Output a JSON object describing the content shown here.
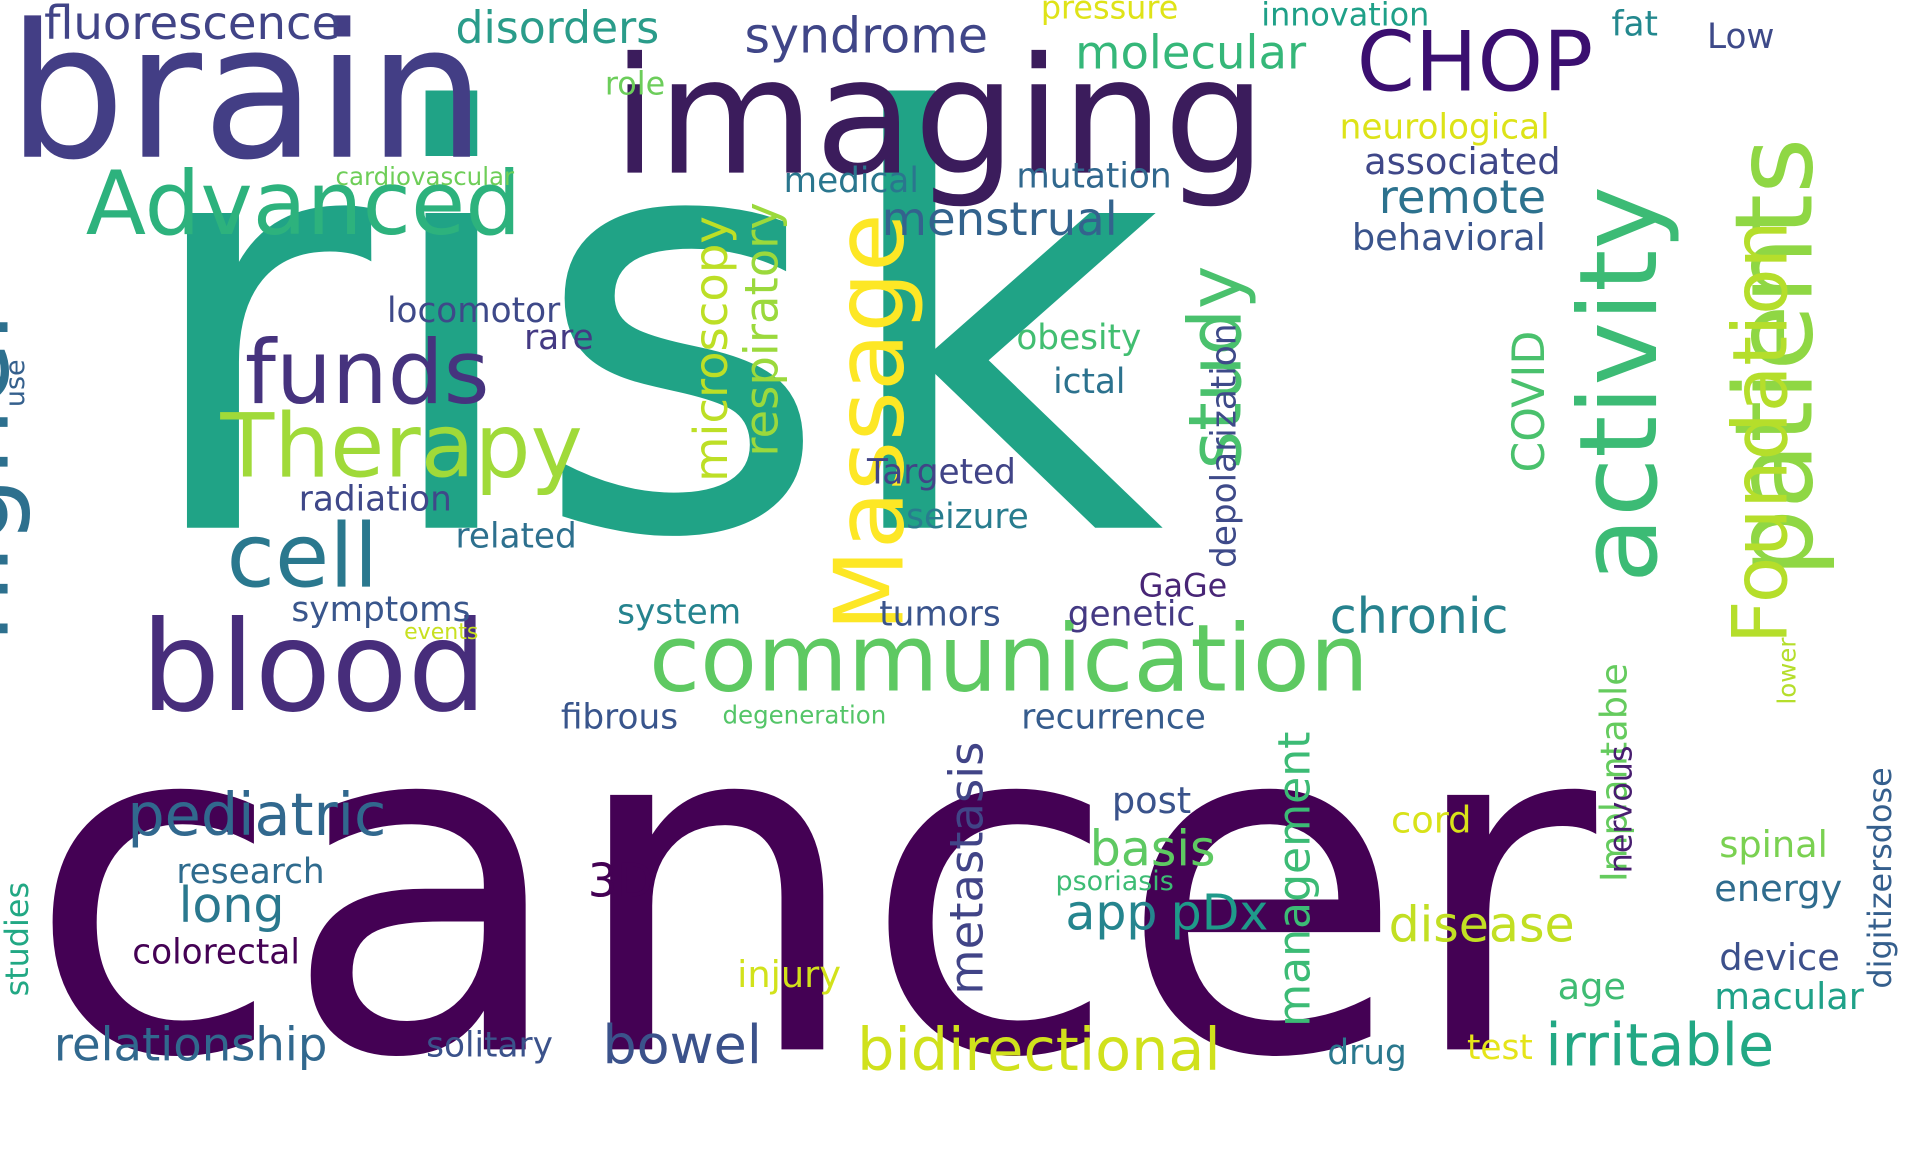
{
  "words": {
    "risk": {
      "text": "risk",
      "color": "#20a386"
    },
    "cancer": {
      "text": "cancer",
      "color": "#440154"
    },
    "brain": {
      "text": "brain",
      "color": "#433e85"
    },
    "imaging": {
      "text": "imaging",
      "color": "#3b1c5c"
    },
    "higher": {
      "text": "higher",
      "color": "#2d708e"
    },
    "patients": {
      "text": "patients",
      "color": "#8fd744"
    },
    "activity": {
      "text": "activity",
      "color": "#3cbb75"
    },
    "massage": {
      "text": "Massage",
      "color": "#fde725"
    },
    "blood": {
      "text": "blood",
      "color": "#472d7b"
    },
    "communication": {
      "text": "communication",
      "color": "#5ec962"
    },
    "foundation": {
      "text": "Foundation",
      "color": "#b5de2b"
    },
    "therapy": {
      "text": "Therapy",
      "color": "#a0da39"
    },
    "advanced": {
      "text": "Advanced",
      "color": "#2db27d"
    },
    "funds": {
      "text": "funds",
      "color": "#46337e"
    },
    "cell": {
      "text": "cell",
      "color": "#2a788e"
    },
    "study": {
      "text": "study",
      "color": "#4ac16d"
    },
    "chop": {
      "text": "CHOP",
      "color": "#3b0f70"
    },
    "bidirectional": {
      "text": "bidirectional",
      "color": "#d0e11c"
    },
    "irritable": {
      "text": "irritable",
      "color": "#22a884"
    },
    "fluorescence": {
      "text": "fluorescence",
      "color": "#414487"
    },
    "disorders": {
      "text": "disorders",
      "color": "#2a9c8a"
    },
    "syndrome": {
      "text": "syndrome",
      "color": "#404688"
    },
    "molecular": {
      "text": "molecular",
      "color": "#35b779"
    },
    "pressure": {
      "text": "pressure",
      "color": "#dfe318"
    },
    "innovation": {
      "text": "innovation",
      "color": "#1fa088"
    },
    "fat": {
      "text": "fat",
      "color": "#23888e"
    },
    "low": {
      "text": "Low",
      "color": "#3e4a89"
    },
    "role": {
      "text": "role",
      "color": "#6ccd5a"
    },
    "neurological": {
      "text": "neurological",
      "color": "#dde318"
    },
    "associated": {
      "text": "associated",
      "color": "#3f4788"
    },
    "remote": {
      "text": "remote",
      "color": "#2c728e"
    },
    "behavioral": {
      "text": "behavioral",
      "color": "#3a548c"
    },
    "cardiovascular": {
      "text": "cardiovascular",
      "color": "#6ece58"
    },
    "medical": {
      "text": "medical",
      "color": "#2a768e"
    },
    "mutation": {
      "text": "mutation",
      "color": "#31688e"
    },
    "menstrual": {
      "text": "menstrual",
      "color": "#33638d"
    },
    "microscopy": {
      "text": "microscopy",
      "color": "#bddf26"
    },
    "respiratory": {
      "text": "respiratory",
      "color": "#9bd93c"
    },
    "locomotor": {
      "text": "locomotor",
      "color": "#3e4989"
    },
    "rare": {
      "text": "rare",
      "color": "#443a83"
    },
    "obesity": {
      "text": "obesity",
      "color": "#42be71"
    },
    "ictal": {
      "text": "ictal",
      "color": "#2c728e"
    },
    "depolarization": {
      "text": "depolarization",
      "color": "#3e4a89"
    },
    "covid": {
      "text": "COVID",
      "color": "#4ac16d"
    },
    "use": {
      "text": "use",
      "color": "#35608d"
    },
    "targeted": {
      "text": "Targeted",
      "color": "#414487"
    },
    "radiation": {
      "text": "radiation",
      "color": "#3f4889"
    },
    "seizure": {
      "text": "seizure",
      "color": "#287c8e"
    },
    "related": {
      "text": "related",
      "color": "#2d708e"
    },
    "gage": {
      "text": "GaGe",
      "color": "#482576"
    },
    "symptoms": {
      "text": "symptoms",
      "color": "#39568c"
    },
    "events": {
      "text": "events",
      "color": "#c8e020"
    },
    "system": {
      "text": "system",
      "color": "#25838e"
    },
    "tumors": {
      "text": "tumors",
      "color": "#3a548c"
    },
    "genetic": {
      "text": "genetic",
      "color": "#443983"
    },
    "chronic": {
      "text": "chronic",
      "color": "#26828e"
    },
    "fibrous": {
      "text": "fibrous",
      "color": "#39558c"
    },
    "degeneration": {
      "text": "degeneration",
      "color": "#54c568"
    },
    "recurrence": {
      "text": "recurrence",
      "color": "#365c8d"
    },
    "lower": {
      "text": "lower",
      "color": "#b5de2b"
    },
    "implantable": {
      "text": "Implantable",
      "color": "#65cb5e"
    },
    "nervous": {
      "text": "nervous",
      "color": "#481d6f"
    },
    "metastasis": {
      "text": "metastasis",
      "color": "#414487"
    },
    "management": {
      "text": "management",
      "color": "#3cbb75"
    },
    "pediatric": {
      "text": "pediatric",
      "color": "#31688e"
    },
    "post": {
      "text": "post",
      "color": "#3a538b"
    },
    "cord": {
      "text": "cord",
      "color": "#d8e219"
    },
    "basis": {
      "text": "basis",
      "color": "#5ec962"
    },
    "spinal": {
      "text": "spinal",
      "color": "#7ad151"
    },
    "digitizersdose": {
      "text": "digitizersdose",
      "color": "#355f8d"
    },
    "research": {
      "text": "research",
      "color": "#2f6b8e"
    },
    "long": {
      "text": "long",
      "color": "#2a788e"
    },
    "3d": {
      "text": "3D",
      "color": "#440154"
    },
    "psoriasis": {
      "text": "psoriasis",
      "color": "#3dbc74"
    },
    "app": {
      "text": "app",
      "color": "#25858e"
    },
    "pdx": {
      "text": "pDx",
      "color": "#1f9a8a"
    },
    "disease": {
      "text": "disease",
      "color": "#c2df23"
    },
    "energy": {
      "text": "energy",
      "color": "#2f6c8e"
    },
    "studies": {
      "text": "studies",
      "color": "#22a884"
    },
    "colorectal": {
      "text": "colorectal",
      "color": "#440154"
    },
    "injury": {
      "text": "injury",
      "color": "#d2e21b"
    },
    "device": {
      "text": "device",
      "color": "#3c508b"
    },
    "age": {
      "text": "age",
      "color": "#3fbc73"
    },
    "macular": {
      "text": "macular",
      "color": "#1fa188"
    },
    "relationship": {
      "text": "relationship",
      "color": "#31688e"
    },
    "solitary": {
      "text": "solitary",
      "color": "#3b528b"
    },
    "bowel": {
      "text": "bowel",
      "color": "#3b528b"
    },
    "drug": {
      "text": "drug",
      "color": "#2a788e"
    },
    "test": {
      "text": "test",
      "color": "#e5e419"
    }
  }
}
